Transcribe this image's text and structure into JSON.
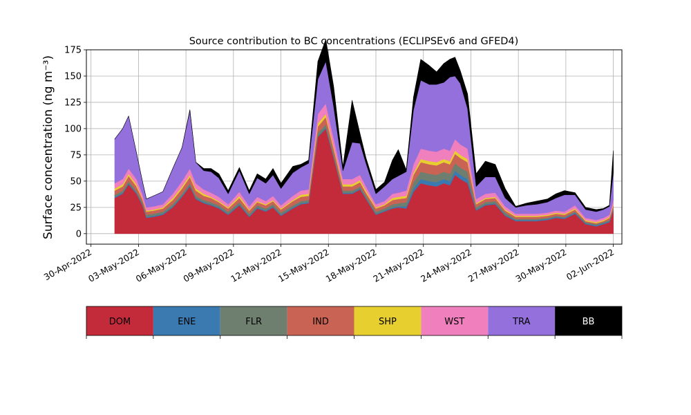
{
  "chart_data": {
    "type": "area",
    "stacked": true,
    "title": "Source contribution to BC concentrations (ECLIPSEv6 and GFED4)",
    "ylabel": "Surface concentration (ng m⁻³)",
    "xlabel": "",
    "ylim": [
      -10,
      175
    ],
    "xlim": [
      "2022-04-29T17:00",
      "2022-06-02T13:00"
    ],
    "yticks": [
      0,
      25,
      50,
      75,
      100,
      125,
      150,
      175
    ],
    "xticks": [
      "30-Apr-2022",
      "03-May-2022",
      "06-May-2022",
      "09-May-2022",
      "12-May-2022",
      "15-May-2022",
      "18-May-2022",
      "21-May-2022",
      "24-May-2022",
      "27-May-2022",
      "30-May-2022",
      "02-Jun-2022"
    ],
    "grid": true,
    "x": [
      "2022-05-01T12:00",
      "2022-05-02T00:00",
      "2022-05-02T09:00",
      "2022-05-02T21:00",
      "2022-05-03T06:00",
      "2022-05-03T12:00",
      "2022-05-03T23:00",
      "2022-05-04T13:00",
      "2022-05-05T04:00",
      "2022-05-05T18:00",
      "2022-05-06T06:00",
      "2022-05-06T15:00",
      "2022-05-07T03:00",
      "2022-05-07T14:00",
      "2022-05-08T02:00",
      "2022-05-08T16:00",
      "2022-05-09T09:00",
      "2022-05-10T00:00",
      "2022-05-10T12:00",
      "2022-05-11T01:00",
      "2022-05-11T12:00",
      "2022-05-12T00:00",
      "2022-05-12T18:00",
      "2022-05-13T06:00",
      "2022-05-13T18:00",
      "2022-05-14T08:00",
      "2022-05-14T20:00",
      "2022-05-15T08:00",
      "2022-05-15T22:00",
      "2022-05-16T12:00",
      "2022-05-17T00:00",
      "2022-05-17T09:00",
      "2022-05-18T00:00",
      "2022-05-18T13:00",
      "2022-05-19T01:00",
      "2022-05-19T10:00",
      "2022-05-19T22:00",
      "2022-05-20T09:00",
      "2022-05-20T20:00",
      "2022-05-21T09:00",
      "2022-05-21T20:00",
      "2022-05-22T07:00",
      "2022-05-22T16:00",
      "2022-05-23T00:00",
      "2022-05-23T08:00",
      "2022-05-23T19:00",
      "2022-05-24T08:00",
      "2022-05-24T22:00",
      "2022-05-25T13:00",
      "2022-05-26T04:00",
      "2022-05-26T20:00",
      "2022-05-27T12:00",
      "2022-05-28T04:00",
      "2022-05-28T20:00",
      "2022-05-29T09:00",
      "2022-05-29T22:00",
      "2022-05-30T14:00",
      "2022-05-31T06:00",
      "2022-05-31T22:00",
      "2022-06-01T09:00",
      "2022-06-01T18:00",
      "2022-06-02T00:00"
    ],
    "series": [
      {
        "name": "DOM",
        "color": "#c32a3a",
        "values": [
          34,
          38,
          47,
          38,
          27,
          15,
          16,
          18,
          25,
          35,
          45,
          33,
          29,
          27,
          24,
          18,
          27,
          16,
          24,
          21,
          25,
          17,
          24,
          28,
          29,
          92,
          100,
          72,
          38,
          38,
          42,
          33,
          18,
          21,
          24,
          25,
          24,
          40,
          48,
          46,
          45,
          48,
          46,
          56,
          52,
          48,
          22,
          27,
          28,
          17,
          12,
          12,
          12,
          13,
          15,
          14,
          19,
          9,
          7,
          9,
          11,
          22
        ]
      },
      {
        "name": "ENE",
        "color": "#3a7ab0",
        "values": [
          1,
          1,
          1,
          1,
          1,
          1,
          1,
          1,
          1,
          1,
          1,
          1,
          1,
          1,
          1,
          1,
          1,
          1,
          1,
          1,
          1,
          1,
          1,
          1,
          1,
          1,
          1,
          1,
          1,
          1,
          1,
          1,
          1,
          1,
          1,
          1,
          2,
          3,
          4,
          4,
          4,
          4,
          4,
          4,
          4,
          4,
          1,
          1,
          1,
          1,
          1,
          1,
          1,
          1,
          1,
          1,
          1,
          1,
          1,
          1,
          1,
          1
        ]
      },
      {
        "name": "FLR",
        "color": "#6e7f70",
        "values": [
          2,
          2,
          2,
          2,
          2,
          2,
          2,
          2,
          2,
          2,
          2,
          2,
          2,
          2,
          2,
          2,
          2,
          2,
          2,
          2,
          2,
          2,
          2,
          2,
          2,
          3,
          3,
          3,
          2,
          2,
          2,
          2,
          2,
          2,
          3,
          3,
          4,
          6,
          7,
          7,
          7,
          7,
          7,
          7,
          7,
          7,
          2,
          2,
          2,
          2,
          1,
          1,
          1,
          1,
          1,
          1,
          1,
          1,
          1,
          1,
          1,
          1
        ]
      },
      {
        "name": "IND",
        "color": "#c96455",
        "values": [
          4,
          4,
          5,
          4,
          3,
          3,
          3,
          3,
          4,
          5,
          6,
          5,
          4,
          4,
          3,
          3,
          4,
          3,
          3,
          3,
          3,
          3,
          4,
          4,
          4,
          6,
          7,
          5,
          4,
          4,
          4,
          3,
          3,
          3,
          4,
          4,
          4,
          7,
          9,
          9,
          9,
          9,
          9,
          9,
          9,
          9,
          3,
          3,
          3,
          2,
          2,
          2,
          2,
          2,
          2,
          2,
          2,
          1,
          1,
          1,
          2,
          3
        ]
      },
      {
        "name": "SHP",
        "color": "#e8cf30",
        "values": [
          2,
          2,
          2,
          2,
          1,
          1,
          1,
          1,
          2,
          2,
          2,
          2,
          2,
          1,
          1,
          1,
          2,
          1,
          1,
          1,
          1,
          1,
          1,
          2,
          2,
          3,
          3,
          2,
          2,
          2,
          2,
          2,
          1,
          1,
          2,
          2,
          2,
          2,
          3,
          3,
          3,
          3,
          3,
          3,
          3,
          3,
          1,
          1,
          1,
          1,
          1,
          1,
          1,
          1,
          1,
          1,
          1,
          1,
          1,
          1,
          1,
          1
        ]
      },
      {
        "name": "WST",
        "color": "#f07fbd",
        "values": [
          5,
          5,
          5,
          5,
          4,
          3,
          3,
          3,
          4,
          5,
          6,
          5,
          4,
          4,
          4,
          3,
          4,
          3,
          4,
          3,
          4,
          3,
          4,
          4,
          4,
          9,
          10,
          8,
          5,
          5,
          5,
          4,
          3,
          3,
          4,
          4,
          5,
          8,
          10,
          10,
          10,
          10,
          10,
          11,
          10,
          10,
          4,
          4,
          4,
          3,
          2,
          2,
          2,
          2,
          2,
          2,
          3,
          2,
          2,
          2,
          2,
          4
        ]
      },
      {
        "name": "TRA",
        "color": "#9370db",
        "values": [
          42,
          48,
          50,
          25,
          12,
          8,
          10,
          12,
          24,
          32,
          55,
          20,
          18,
          20,
          18,
          10,
          20,
          12,
          18,
          17,
          20,
          16,
          22,
          22,
          25,
          33,
          40,
          30,
          8,
          35,
          30,
          22,
          10,
          14,
          14,
          16,
          18,
          52,
          65,
          63,
          64,
          63,
          70,
          60,
          58,
          38,
          12,
          16,
          15,
          8,
          6,
          8,
          9,
          10,
          12,
          16,
          10,
          8,
          8,
          8,
          8,
          26
        ]
      },
      {
        "name": "BB",
        "color": "#000000",
        "values": [
          0,
          0,
          0,
          0,
          0,
          0,
          0,
          0,
          0,
          0,
          1,
          0,
          2,
          3,
          4,
          3,
          3,
          3,
          4,
          4,
          6,
          5,
          6,
          3,
          3,
          17,
          21,
          19,
          4,
          40,
          9,
          5,
          4,
          4,
          18,
          25,
          2,
          12,
          20,
          18,
          12,
          18,
          17,
          18,
          12,
          14,
          12,
          15,
          12,
          9,
          1,
          2,
          3,
          3,
          4,
          4,
          2,
          2,
          2,
          1,
          1,
          21
        ]
      }
    ],
    "legend": {
      "placement": "below",
      "entries": [
        "DOM",
        "ENE",
        "FLR",
        "IND",
        "SHP",
        "WST",
        "TRA",
        "BB"
      ],
      "colors": [
        "#c32a3a",
        "#3a7ab0",
        "#6e7f70",
        "#c96455",
        "#e8cf30",
        "#f07fbd",
        "#9370db",
        "#000000"
      ],
      "text_colors": [
        "#000000",
        "#000000",
        "#000000",
        "#000000",
        "#000000",
        "#000000",
        "#000000",
        "#ffffff"
      ]
    }
  }
}
